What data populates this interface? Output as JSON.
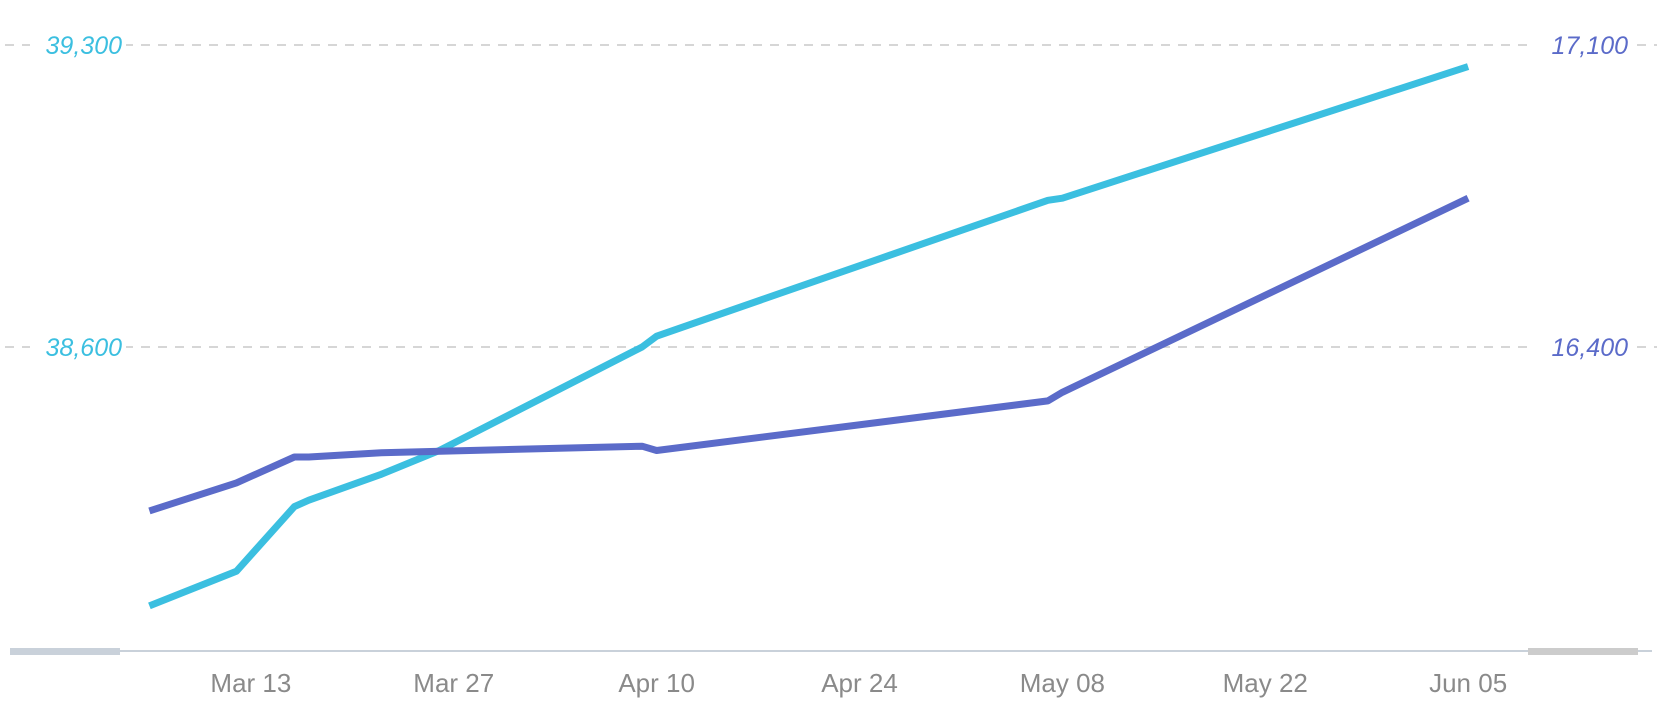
{
  "colors": {
    "series_cyan": "#3bbfe0",
    "series_purple": "#5b6bc9",
    "grid": "#d6d6d6",
    "axis": "#c9d1da",
    "tick_text": "#8a8a8a",
    "scroll_left": "#c9d1da",
    "scroll_right": "#cccccc"
  },
  "chart_data": {
    "type": "line",
    "title": "",
    "xlabel": "",
    "grid": true,
    "legend": "none",
    "x_ticks": [
      "Mar 13",
      "Mar 27",
      "Apr 10",
      "Apr 24",
      "May 08",
      "May 22",
      "Jun 05"
    ],
    "x_tick_dates": [
      "2021-03-13",
      "2021-03-27",
      "2021-04-10",
      "2021-04-24",
      "2021-05-08",
      "2021-05-22",
      "2021-06-05"
    ],
    "x_range": [
      "2021-02-27",
      "2021-06-21"
    ],
    "y_left": {
      "ticks": [
        "39,300",
        "38,600"
      ],
      "tick_values": [
        39300,
        38600
      ],
      "range": [
        37900,
        39300
      ]
    },
    "y_right": {
      "ticks": [
        "17,100",
        "16,400"
      ],
      "tick_values": [
        17100,
        16400
      ],
      "range": [
        15700,
        17100
      ]
    },
    "series": [
      {
        "axis": "left",
        "color": "#3bbfe0",
        "points": [
          [
            "2021-03-06",
            38000
          ],
          [
            "2021-03-12",
            38080
          ],
          [
            "2021-03-16",
            38230
          ],
          [
            "2021-03-17",
            38245
          ],
          [
            "2021-03-22",
            38305
          ],
          [
            "2021-03-26",
            38360
          ],
          [
            "2021-04-09",
            38600
          ],
          [
            "2021-04-10",
            38625
          ],
          [
            "2021-05-07",
            38940
          ],
          [
            "2021-05-08",
            38945
          ],
          [
            "2021-06-05",
            39250
          ]
        ]
      },
      {
        "axis": "right",
        "color": "#5b6bc9",
        "points": [
          [
            "2021-03-06",
            16020
          ],
          [
            "2021-03-12",
            16085
          ],
          [
            "2021-03-16",
            16145
          ],
          [
            "2021-03-17",
            16145
          ],
          [
            "2021-03-22",
            16155
          ],
          [
            "2021-04-09",
            16170
          ],
          [
            "2021-04-10",
            16160
          ],
          [
            "2021-05-07",
            16275
          ],
          [
            "2021-05-08",
            16295
          ],
          [
            "2021-06-05",
            16745
          ]
        ]
      }
    ]
  }
}
